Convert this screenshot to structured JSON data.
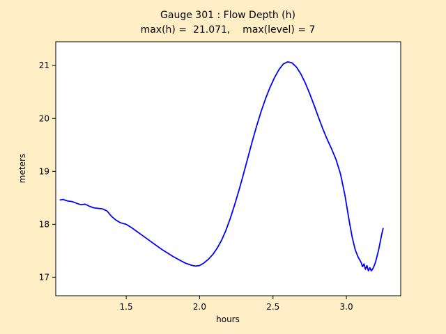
{
  "figure": {
    "kind": "gauge-timeseries-plot"
  },
  "colors": {
    "background": "#ffeec6",
    "plot_background": "#ffffff",
    "axis": "#000000",
    "line": "#0000ff"
  },
  "chart_data": {
    "type": "line",
    "title": "Gauge 301 : Flow Depth (h)",
    "subtitle": "max(h) =  21.071,    max(level) = 7",
    "xlabel": "hours",
    "ylabel": "meters",
    "xlim": [
      1.02,
      3.37
    ],
    "ylim": [
      16.65,
      21.45
    ],
    "xticks": [
      1.5,
      2.0,
      2.5,
      3.0
    ],
    "xtick_labels": [
      "1.5",
      "2.0",
      "2.5",
      "3.0"
    ],
    "yticks": [
      17,
      18,
      19,
      20,
      21
    ],
    "ytick_labels": [
      "17",
      "18",
      "19",
      "20",
      "21"
    ],
    "grid": false,
    "legend_position": "none",
    "max_h": 21.071,
    "max_level": 7,
    "series": [
      {
        "name": "flow-depth-h",
        "color": "#0000ff",
        "x": [
          1.05,
          1.07,
          1.1,
          1.13,
          1.16,
          1.19,
          1.22,
          1.25,
          1.28,
          1.31,
          1.34,
          1.37,
          1.4,
          1.43,
          1.46,
          1.5,
          1.54,
          1.58,
          1.62,
          1.66,
          1.7,
          1.74,
          1.78,
          1.82,
          1.86,
          1.9,
          1.94,
          1.97,
          2.0,
          2.03,
          2.06,
          2.09,
          2.12,
          2.15,
          2.18,
          2.21,
          2.24,
          2.27,
          2.3,
          2.33,
          2.36,
          2.39,
          2.42,
          2.45,
          2.48,
          2.51,
          2.54,
          2.57,
          2.6,
          2.63,
          2.66,
          2.69,
          2.72,
          2.75,
          2.78,
          2.81,
          2.84,
          2.87,
          2.9,
          2.93,
          2.96,
          2.99,
          3.02,
          3.04,
          3.06,
          3.08,
          3.1,
          3.11,
          3.12,
          3.13,
          3.14,
          3.15,
          3.16,
          3.17,
          3.18,
          3.19,
          3.2,
          3.22,
          3.24,
          3.25
        ],
        "y": [
          18.46,
          18.47,
          18.44,
          18.43,
          18.4,
          18.37,
          18.38,
          18.34,
          18.31,
          18.3,
          18.29,
          18.25,
          18.15,
          18.08,
          18.03,
          18.0,
          17.93,
          17.85,
          17.77,
          17.69,
          17.61,
          17.53,
          17.46,
          17.39,
          17.33,
          17.27,
          17.23,
          17.21,
          17.22,
          17.27,
          17.34,
          17.43,
          17.55,
          17.7,
          17.89,
          18.12,
          18.38,
          18.66,
          18.96,
          19.27,
          19.58,
          19.87,
          20.14,
          20.38,
          20.59,
          20.77,
          20.92,
          21.03,
          21.07,
          21.05,
          20.97,
          20.84,
          20.67,
          20.47,
          20.25,
          20.02,
          19.8,
          19.6,
          19.42,
          19.22,
          18.95,
          18.55,
          18.05,
          17.75,
          17.52,
          17.38,
          17.28,
          17.2,
          17.25,
          17.15,
          17.22,
          17.12,
          17.18,
          17.12,
          17.16,
          17.22,
          17.3,
          17.52,
          17.8,
          17.92
        ]
      }
    ]
  }
}
